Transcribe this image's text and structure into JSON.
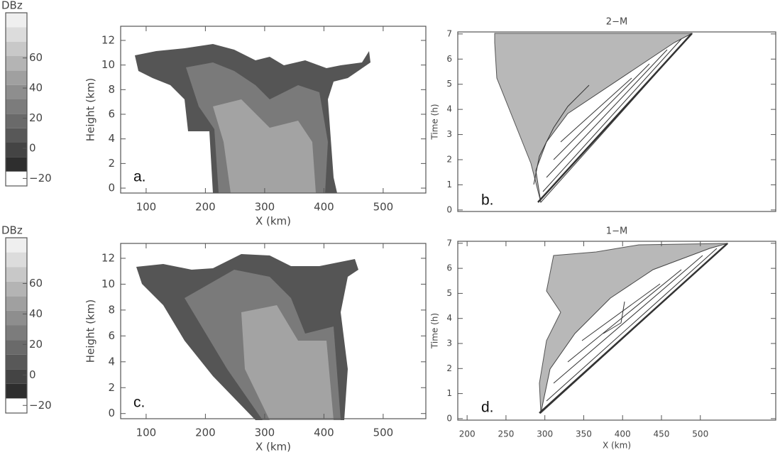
{
  "chart_data": [
    {
      "type": "contour",
      "label": "a.",
      "xlabel": "X (km)",
      "ylabel": "Height (km)",
      "xlim": [
        57,
        572
      ],
      "ylim": [
        -0.4,
        13.15
      ],
      "xticks": [
        100,
        200,
        300,
        400,
        500
      ],
      "yticks": [
        0,
        2,
        4,
        6,
        8,
        10,
        12
      ],
      "colorbar": {
        "label": "DBz",
        "lim": [
          -25,
          90
        ],
        "ticks": [
          60,
          40,
          20,
          0,
          {
            "value": -20,
            "label": "−20"
          }
        ]
      }
    },
    {
      "type": "contour",
      "title": "2−M",
      "label": "b.",
      "ylabel": "Time (h)",
      "xlim": [
        188,
        597
      ],
      "ylim": [
        -0.06,
        7.08
      ],
      "yticks": [
        0,
        1,
        2,
        3,
        4,
        5,
        6,
        7
      ]
    },
    {
      "type": "contour",
      "label": "c.",
      "xlabel": "X (km)",
      "ylabel": "Height (km)",
      "xlim": [
        57,
        572
      ],
      "ylim": [
        -0.4,
        13.15
      ],
      "xticks": [
        100,
        200,
        300,
        400,
        500
      ],
      "yticks": [
        0,
        2,
        4,
        6,
        8,
        10,
        12
      ],
      "colorbar": {
        "label": "DBz",
        "lim": [
          -25,
          90
        ],
        "ticks": [
          60,
          40,
          20,
          0,
          {
            "value": -20,
            "label": "−20"
          }
        ]
      }
    },
    {
      "type": "contour",
      "title": "1−M",
      "label": "d.",
      "xlabel": "X (km)",
      "ylabel": "Time (h)",
      "xlim": [
        188,
        597
      ],
      "ylim": [
        -0.06,
        7.08
      ],
      "xticks": [
        200,
        250,
        300,
        350,
        400,
        450,
        500
      ],
      "yticks": [
        0,
        1,
        2,
        3,
        4,
        5,
        6,
        7
      ]
    }
  ]
}
